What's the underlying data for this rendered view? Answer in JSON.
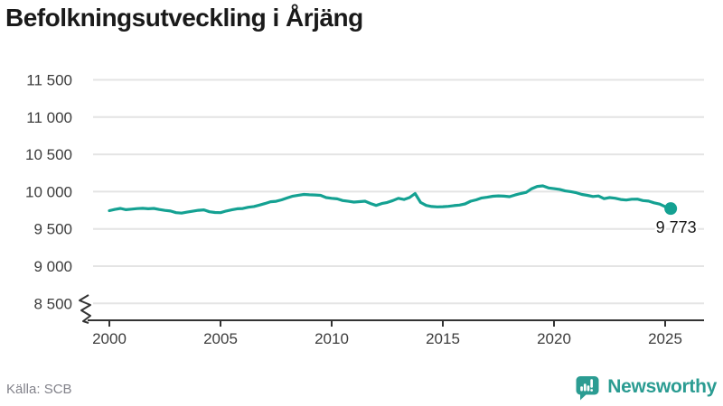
{
  "title": "Befolkningsutveckling i Årjäng",
  "source": {
    "label": "Källa: SCB"
  },
  "logo": {
    "text": "Newsworthy",
    "icon": "newsworthy-speech-bubble-bar-chart-icon",
    "color": "#2b9c92"
  },
  "colors": {
    "line": "#14a192",
    "grid": "#e4e4e4",
    "axis": "#333333",
    "tick_text": "#3d3d3d",
    "end_label_text": "#1a1a1a",
    "title_text": "#1a1a1a",
    "source_text": "#82828a"
  },
  "chart_data": {
    "type": "line",
    "title": "Befolkningsutveckling i Årjäng",
    "xlabel": "",
    "ylabel": "",
    "grid": "horizontal",
    "axis_break": true,
    "legend_position": "none",
    "ylim": [
      8500,
      11500
    ],
    "xlim": [
      2000,
      2026.7
    ],
    "y_ticks": [
      11500,
      11000,
      10500,
      10000,
      9500,
      9000,
      8500
    ],
    "y_tick_labels": [
      "11 500",
      "11 000",
      "10 500",
      "10 000",
      "9 500",
      "9 000",
      "8 500"
    ],
    "x_ticks": [
      2000,
      2005,
      2010,
      2015,
      2020,
      2025
    ],
    "x_tick_labels": [
      "2000",
      "2005",
      "2010",
      "2015",
      "2020",
      "2025"
    ],
    "end_label": "9 773",
    "x": [
      2000,
      2000.25,
      2000.5,
      2000.75,
      2001,
      2001.25,
      2001.5,
      2001.75,
      2002,
      2002.25,
      2002.5,
      2002.75,
      2003,
      2003.25,
      2003.5,
      2003.75,
      2004,
      2004.25,
      2004.5,
      2004.75,
      2005,
      2005.25,
      2005.5,
      2005.75,
      2006,
      2006.25,
      2006.5,
      2006.75,
      2007,
      2007.25,
      2007.5,
      2007.75,
      2008,
      2008.25,
      2008.5,
      2008.75,
      2009,
      2009.25,
      2009.5,
      2009.75,
      2010,
      2010.25,
      2010.5,
      2010.75,
      2011,
      2011.25,
      2011.5,
      2011.75,
      2012,
      2012.25,
      2012.5,
      2012.75,
      2013,
      2013.25,
      2013.5,
      2013.75,
      2014,
      2014.25,
      2014.5,
      2014.75,
      2015,
      2015.25,
      2015.5,
      2015.75,
      2016,
      2016.25,
      2016.5,
      2016.75,
      2017,
      2017.25,
      2017.5,
      2017.75,
      2018,
      2018.25,
      2018.5,
      2018.75,
      2019,
      2019.25,
      2019.5,
      2019.75,
      2020,
      2020.25,
      2020.5,
      2020.75,
      2021,
      2021.25,
      2021.5,
      2021.75,
      2022,
      2022.25,
      2022.5,
      2022.75,
      2023,
      2023.25,
      2023.5,
      2023.75,
      2024,
      2024.25,
      2024.5,
      2024.75,
      2025,
      2025.25
    ],
    "series": [
      {
        "name": "Befolkning",
        "values": [
          9745,
          9762,
          9775,
          9758,
          9765,
          9772,
          9776,
          9770,
          9775,
          9760,
          9748,
          9740,
          9718,
          9712,
          9725,
          9737,
          9750,
          9756,
          9730,
          9720,
          9718,
          9740,
          9756,
          9770,
          9774,
          9790,
          9800,
          9820,
          9840,
          9865,
          9870,
          9890,
          9915,
          9940,
          9952,
          9962,
          9958,
          9955,
          9950,
          9920,
          9910,
          9903,
          9880,
          9870,
          9860,
          9866,
          9872,
          9840,
          9815,
          9840,
          9855,
          9880,
          9910,
          9895,
          9920,
          9975,
          9855,
          9815,
          9800,
          9795,
          9798,
          9803,
          9812,
          9820,
          9835,
          9872,
          9890,
          9915,
          9925,
          9938,
          9943,
          9940,
          9932,
          9955,
          9975,
          9990,
          10040,
          10070,
          10078,
          10050,
          10040,
          10030,
          10010,
          10000,
          9985,
          9962,
          9950,
          9935,
          9942,
          9905,
          9920,
          9912,
          9895,
          9887,
          9898,
          9900,
          9880,
          9873,
          9850,
          9833,
          9798,
          9773
        ]
      }
    ]
  }
}
